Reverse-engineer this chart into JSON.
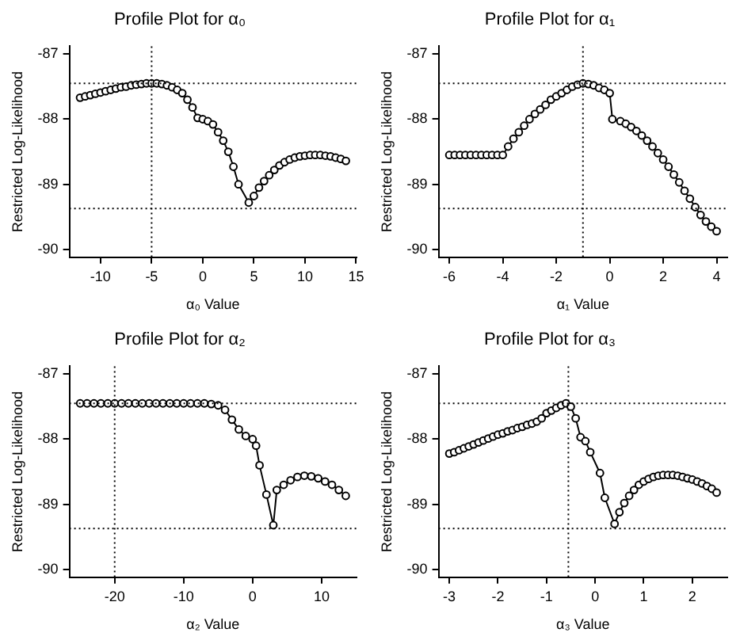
{
  "chart_data": [
    {
      "type": "line",
      "title": "Profile Plot for α₀",
      "xlabel": "α₀ Value",
      "ylabel": "Restricted Log-Likelihood",
      "color": "#000000",
      "marker": "circle",
      "line_style": "solid",
      "grid": false,
      "x": [
        -12,
        -11.5,
        -11,
        -10.5,
        -10,
        -9.5,
        -9,
        -8.5,
        -8,
        -7.5,
        -7,
        -6.5,
        -6,
        -5.5,
        -5,
        -4.5,
        -4,
        -3.5,
        -3,
        -2.5,
        -2,
        -1.5,
        -1,
        -0.5,
        0,
        0.5,
        1,
        1.5,
        2,
        2.5,
        3,
        3.5,
        4.5,
        5,
        5.5,
        6,
        6.5,
        7,
        7.5,
        8,
        8.5,
        9,
        9.5,
        10,
        10.5,
        11,
        11.5,
        12,
        12.5,
        13,
        13.5,
        14
      ],
      "values": [
        -87.67,
        -87.65,
        -87.63,
        -87.61,
        -87.59,
        -87.57,
        -87.55,
        -87.53,
        -87.51,
        -87.5,
        -87.48,
        -87.47,
        -87.46,
        -87.45,
        -87.45,
        -87.45,
        -87.46,
        -87.48,
        -87.51,
        -87.55,
        -87.6,
        -87.7,
        -87.82,
        -87.98,
        -88.0,
        -88.03,
        -88.08,
        -88.2,
        -88.33,
        -88.5,
        -88.73,
        -89.0,
        -89.28,
        -89.18,
        -89.05,
        -88.95,
        -88.86,
        -88.78,
        -88.71,
        -88.66,
        -88.62,
        -88.59,
        -88.57,
        -88.56,
        -88.55,
        -88.55,
        -88.55,
        -88.56,
        -88.57,
        -88.59,
        -88.61,
        -88.64
      ],
      "xlim": [
        -13.04,
        15.04
      ],
      "xticks": [
        -10,
        -5,
        0,
        5,
        10,
        15
      ],
      "ylim": [
        -90.12,
        -86.88
      ],
      "yticks": [
        -87,
        -88,
        -89,
        -90
      ],
      "ref_lines": [
        {
          "axis": "y",
          "value": -87.45,
          "line_style": "dotted"
        },
        {
          "axis": "y",
          "value": -89.37,
          "line_style": "dotted"
        },
        {
          "axis": "x",
          "value": -5,
          "line_style": "dotted"
        }
      ]
    },
    {
      "type": "line",
      "title": "Profile Plot for α₁",
      "xlabel": "α₁ Value",
      "ylabel": "Restricted Log-Likelihood",
      "color": "#000000",
      "marker": "circle",
      "line_style": "solid",
      "grid": false,
      "x": [
        -6,
        -5.8,
        -5.6,
        -5.4,
        -5.2,
        -5,
        -4.8,
        -4.6,
        -4.4,
        -4.2,
        -4,
        -3.8,
        -3.6,
        -3.4,
        -3.2,
        -3,
        -2.8,
        -2.6,
        -2.4,
        -2.2,
        -2,
        -1.8,
        -1.6,
        -1.4,
        -1.2,
        -1,
        -0.8,
        -0.6,
        -0.4,
        -0.2,
        0,
        0.1,
        0.4,
        0.6,
        0.8,
        1,
        1.2,
        1.4,
        1.6,
        1.8,
        2,
        2.2,
        2.4,
        2.6,
        2.8,
        3,
        3.2,
        3.4,
        3.6,
        3.8,
        4
      ],
      "values": [
        -88.55,
        -88.55,
        -88.55,
        -88.55,
        -88.55,
        -88.55,
        -88.55,
        -88.55,
        -88.55,
        -88.55,
        -88.55,
        -88.42,
        -88.3,
        -88.2,
        -88.1,
        -88.0,
        -87.92,
        -87.85,
        -87.78,
        -87.7,
        -87.65,
        -87.6,
        -87.55,
        -87.5,
        -87.47,
        -87.45,
        -87.46,
        -87.48,
        -87.52,
        -87.55,
        -87.6,
        -88.0,
        -88.03,
        -88.07,
        -88.12,
        -88.18,
        -88.25,
        -88.33,
        -88.42,
        -88.52,
        -88.62,
        -88.73,
        -88.85,
        -88.97,
        -89.1,
        -89.22,
        -89.35,
        -89.47,
        -89.57,
        -89.65,
        -89.72
      ],
      "xlim": [
        -6.4,
        4.4
      ],
      "xticks": [
        -6,
        -4,
        -2,
        0,
        2,
        4
      ],
      "ylim": [
        -90.12,
        -86.88
      ],
      "yticks": [
        -87,
        -88,
        -89,
        -90
      ],
      "ref_lines": [
        {
          "axis": "y",
          "value": -87.45,
          "line_style": "dotted"
        },
        {
          "axis": "y",
          "value": -89.37,
          "line_style": "dotted"
        },
        {
          "axis": "x",
          "value": -1,
          "line_style": "dotted"
        }
      ]
    },
    {
      "type": "line",
      "title": "Profile Plot for α₂",
      "xlabel": "α₂ Value",
      "ylabel": "Restricted Log-Likelihood",
      "color": "#000000",
      "marker": "circle",
      "line_style": "solid",
      "grid": false,
      "x": [
        -25,
        -24,
        -23,
        -22,
        -21,
        -20,
        -19,
        -18,
        -17,
        -16,
        -15,
        -14,
        -13,
        -12,
        -11,
        -10,
        -9,
        -8,
        -7,
        -6,
        -5,
        -4,
        -3,
        -2,
        -1,
        0,
        0.5,
        1,
        2,
        3,
        3.5,
        4.5,
        5.5,
        6.5,
        7.5,
        8.5,
        9.5,
        10.5,
        11.5,
        12.5,
        13.5
      ],
      "values": [
        -87.45,
        -87.45,
        -87.45,
        -87.45,
        -87.45,
        -87.45,
        -87.45,
        -87.45,
        -87.45,
        -87.45,
        -87.45,
        -87.45,
        -87.45,
        -87.45,
        -87.45,
        -87.45,
        -87.45,
        -87.45,
        -87.45,
        -87.46,
        -87.48,
        -87.55,
        -87.7,
        -87.85,
        -87.95,
        -88.0,
        -88.1,
        -88.4,
        -88.85,
        -89.32,
        -88.78,
        -88.7,
        -88.63,
        -88.58,
        -88.56,
        -88.57,
        -88.6,
        -88.65,
        -88.7,
        -88.78,
        -88.87
      ],
      "xlim": [
        -26.56,
        15.06
      ],
      "xticks": [
        -20,
        -10,
        0,
        10
      ],
      "ylim": [
        -90.12,
        -86.88
      ],
      "yticks": [
        -87,
        -88,
        -89,
        -90
      ],
      "ref_lines": [
        {
          "axis": "y",
          "value": -87.45,
          "line_style": "dotted"
        },
        {
          "axis": "y",
          "value": -89.37,
          "line_style": "dotted"
        },
        {
          "axis": "x",
          "value": -20,
          "line_style": "dotted"
        }
      ]
    },
    {
      "type": "line",
      "title": "Profile Plot for α₃",
      "xlabel": "α₃ Value",
      "ylabel": "Restricted Log-Likelihood",
      "color": "#000000",
      "marker": "circle",
      "line_style": "solid",
      "grid": false,
      "x": [
        -3,
        -2.9,
        -2.8,
        -2.7,
        -2.6,
        -2.5,
        -2.4,
        -2.3,
        -2.2,
        -2.1,
        -2,
        -1.9,
        -1.8,
        -1.7,
        -1.6,
        -1.5,
        -1.4,
        -1.3,
        -1.2,
        -1.1,
        -1,
        -0.9,
        -0.8,
        -0.7,
        -0.6,
        -0.5,
        -0.4,
        -0.3,
        -0.2,
        -0.1,
        0.1,
        0.2,
        0.4,
        0.5,
        0.6,
        0.7,
        0.8,
        0.9,
        1,
        1.1,
        1.2,
        1.3,
        1.4,
        1.5,
        1.6,
        1.7,
        1.8,
        1.9,
        2,
        2.1,
        2.2,
        2.3,
        2.4,
        2.5
      ],
      "values": [
        -88.22,
        -88.2,
        -88.17,
        -88.14,
        -88.11,
        -88.08,
        -88.05,
        -88.02,
        -87.99,
        -87.96,
        -87.93,
        -87.91,
        -87.88,
        -87.86,
        -87.83,
        -87.81,
        -87.78,
        -87.76,
        -87.73,
        -87.68,
        -87.6,
        -87.56,
        -87.52,
        -87.48,
        -87.45,
        -87.5,
        -87.68,
        -87.97,
        -88.03,
        -88.2,
        -88.52,
        -88.9,
        -89.3,
        -89.12,
        -88.98,
        -88.87,
        -88.78,
        -88.7,
        -88.65,
        -88.61,
        -88.58,
        -88.56,
        -88.55,
        -88.55,
        -88.55,
        -88.56,
        -88.58,
        -88.6,
        -88.62,
        -88.65,
        -88.68,
        -88.72,
        -88.76,
        -88.82
      ],
      "xlim": [
        -3.22,
        2.72
      ],
      "xticks": [
        -3,
        -2,
        -1,
        0,
        1,
        2
      ],
      "ylim": [
        -90.12,
        -86.88
      ],
      "yticks": [
        -87,
        -88,
        -89,
        -90
      ],
      "ref_lines": [
        {
          "axis": "y",
          "value": -87.45,
          "line_style": "dotted"
        },
        {
          "axis": "y",
          "value": -89.37,
          "line_style": "dotted"
        },
        {
          "axis": "x",
          "value": -0.55,
          "line_style": "dotted"
        }
      ]
    }
  ]
}
